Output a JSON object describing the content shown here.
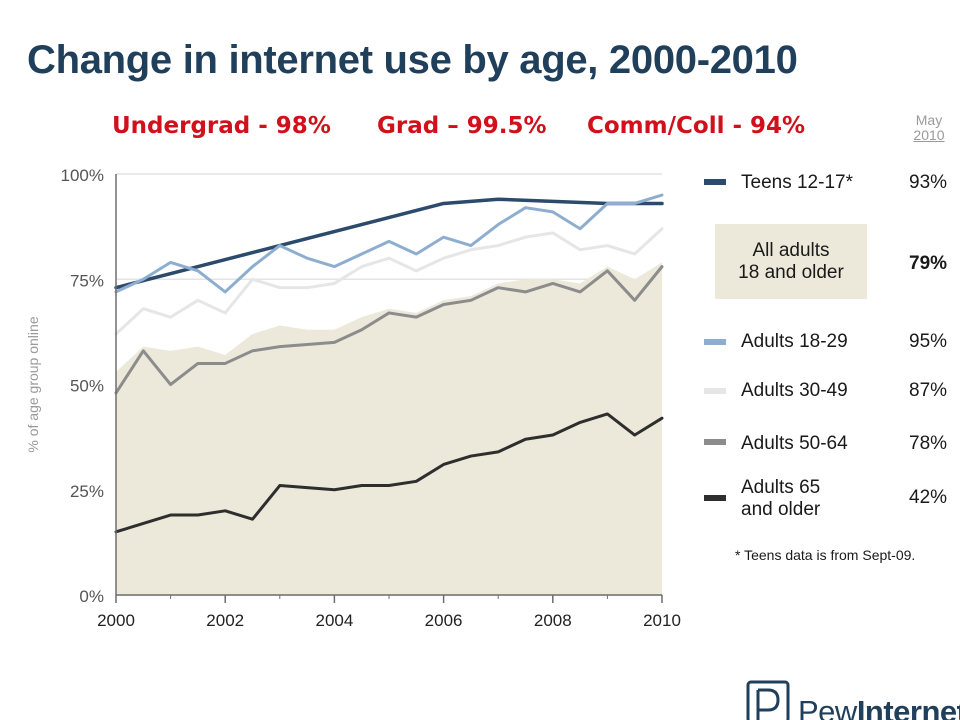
{
  "title": "Change in internet use by age, 2000-2010",
  "subtitle": {
    "undergrad": "Undergrad - 98%",
    "grad": "Grad – 99.5%",
    "commcoll": "Comm/Coll - 94%"
  },
  "column_header": {
    "month": "May",
    "year": "2010"
  },
  "legend": {
    "teens": {
      "label": "Teens 12-17*",
      "value": "93%"
    },
    "all_adults": {
      "label": "All adults\n18 and older",
      "value": "79%"
    },
    "a18_29": {
      "label": "Adults 18-29",
      "value": "95%"
    },
    "a30_49": {
      "label": "Adults 30-49",
      "value": "87%"
    },
    "a50_64": {
      "label": "Adults 50-64",
      "value": "78%"
    },
    "a65": {
      "label": "Adults 65\nand older",
      "value": "42%"
    }
  },
  "footnote": "* Teens data is from Sept-09.",
  "logo": {
    "word1": "Pew",
    "word2": "Internet"
  },
  "colors": {
    "title": "#1f3f5b",
    "subtitle": "#d0101a",
    "teens": "#2c4a6b",
    "a18_29": "#8eaed0",
    "a30_49": "#e6e6e6",
    "a50_64": "#8c8c8c",
    "a65": "#2e2e2e",
    "all_adults_area": "#ece8da",
    "grid": "#e4e4e4"
  },
  "chart_data": {
    "type": "line",
    "title": "Change in internet use by age, 2000-2010",
    "xlabel": "",
    "ylabel": "% of age group online",
    "xlim": [
      2000,
      2010
    ],
    "ylim": [
      0,
      100
    ],
    "x_ticks": [
      "2000",
      "2002",
      "2004",
      "2006",
      "2008",
      "2010"
    ],
    "y_ticks": [
      "0%",
      "25%",
      "50%",
      "75%",
      "100%"
    ],
    "grid": true,
    "legend_position": "right",
    "area": {
      "name": "All adults 18 and older",
      "x": [
        2000,
        2000.5,
        2001,
        2001.5,
        2002,
        2002.5,
        2003,
        2003.5,
        2004,
        2004.5,
        2005,
        2005.5,
        2006,
        2006.5,
        2007,
        2007.5,
        2008,
        2008.5,
        2009,
        2009.5,
        2010
      ],
      "values": [
        53,
        59,
        58,
        59,
        57,
        62,
        64,
        63,
        63,
        66,
        68,
        67,
        70,
        71,
        74,
        75,
        75,
        74,
        78,
        75,
        79
      ]
    },
    "series": [
      {
        "name": "Teens 12-17*",
        "x": [
          2000,
          2006,
          2007,
          2009,
          2010
        ],
        "values": [
          73,
          93,
          94,
          93,
          93
        ]
      },
      {
        "name": "Adults 18-29",
        "x": [
          2000,
          2000.5,
          2001,
          2001.5,
          2002,
          2002.5,
          2003,
          2003.5,
          2004,
          2004.5,
          2005,
          2005.5,
          2006,
          2006.5,
          2007,
          2007.5,
          2008,
          2008.5,
          2009,
          2009.5,
          2010
        ],
        "values": [
          72,
          75,
          79,
          77,
          72,
          78,
          83,
          80,
          78,
          81,
          84,
          81,
          85,
          83,
          88,
          92,
          91,
          87,
          93,
          93,
          95
        ]
      },
      {
        "name": "Adults 30-49",
        "x": [
          2000,
          2000.5,
          2001,
          2001.5,
          2002,
          2002.5,
          2003,
          2003.5,
          2004,
          2004.5,
          2005,
          2005.5,
          2006,
          2006.5,
          2007,
          2007.5,
          2008,
          2008.5,
          2009,
          2009.5,
          2010
        ],
        "values": [
          62,
          68,
          66,
          70,
          67,
          75,
          73,
          73,
          74,
          78,
          80,
          77,
          80,
          82,
          83,
          85,
          86,
          82,
          83,
          81,
          87
        ]
      },
      {
        "name": "Adults 50-64",
        "x": [
          2000,
          2000.5,
          2001,
          2001.5,
          2002,
          2002.5,
          2003,
          2003.5,
          2004,
          2004.5,
          2005,
          2005.5,
          2006,
          2006.5,
          2007,
          2007.5,
          2008,
          2008.5,
          2009,
          2009.5,
          2010
        ],
        "values": [
          48,
          58,
          50,
          55,
          55,
          58,
          59,
          59.5,
          60,
          63,
          67,
          66,
          69,
          70,
          73,
          72,
          74,
          72,
          77,
          70,
          78
        ]
      },
      {
        "name": "Adults 65 and older",
        "x": [
          2000,
          2000.5,
          2001,
          2001.5,
          2002,
          2002.5,
          2003,
          2003.5,
          2004,
          2004.5,
          2005,
          2005.5,
          2006,
          2006.5,
          2007,
          2007.5,
          2008,
          2008.5,
          2009,
          2009.5,
          2010
        ],
        "values": [
          15,
          17,
          19,
          19,
          20,
          18,
          26,
          25.5,
          25,
          26,
          26,
          27,
          31,
          33,
          34,
          37,
          38,
          41,
          43,
          38,
          42
        ]
      }
    ]
  }
}
